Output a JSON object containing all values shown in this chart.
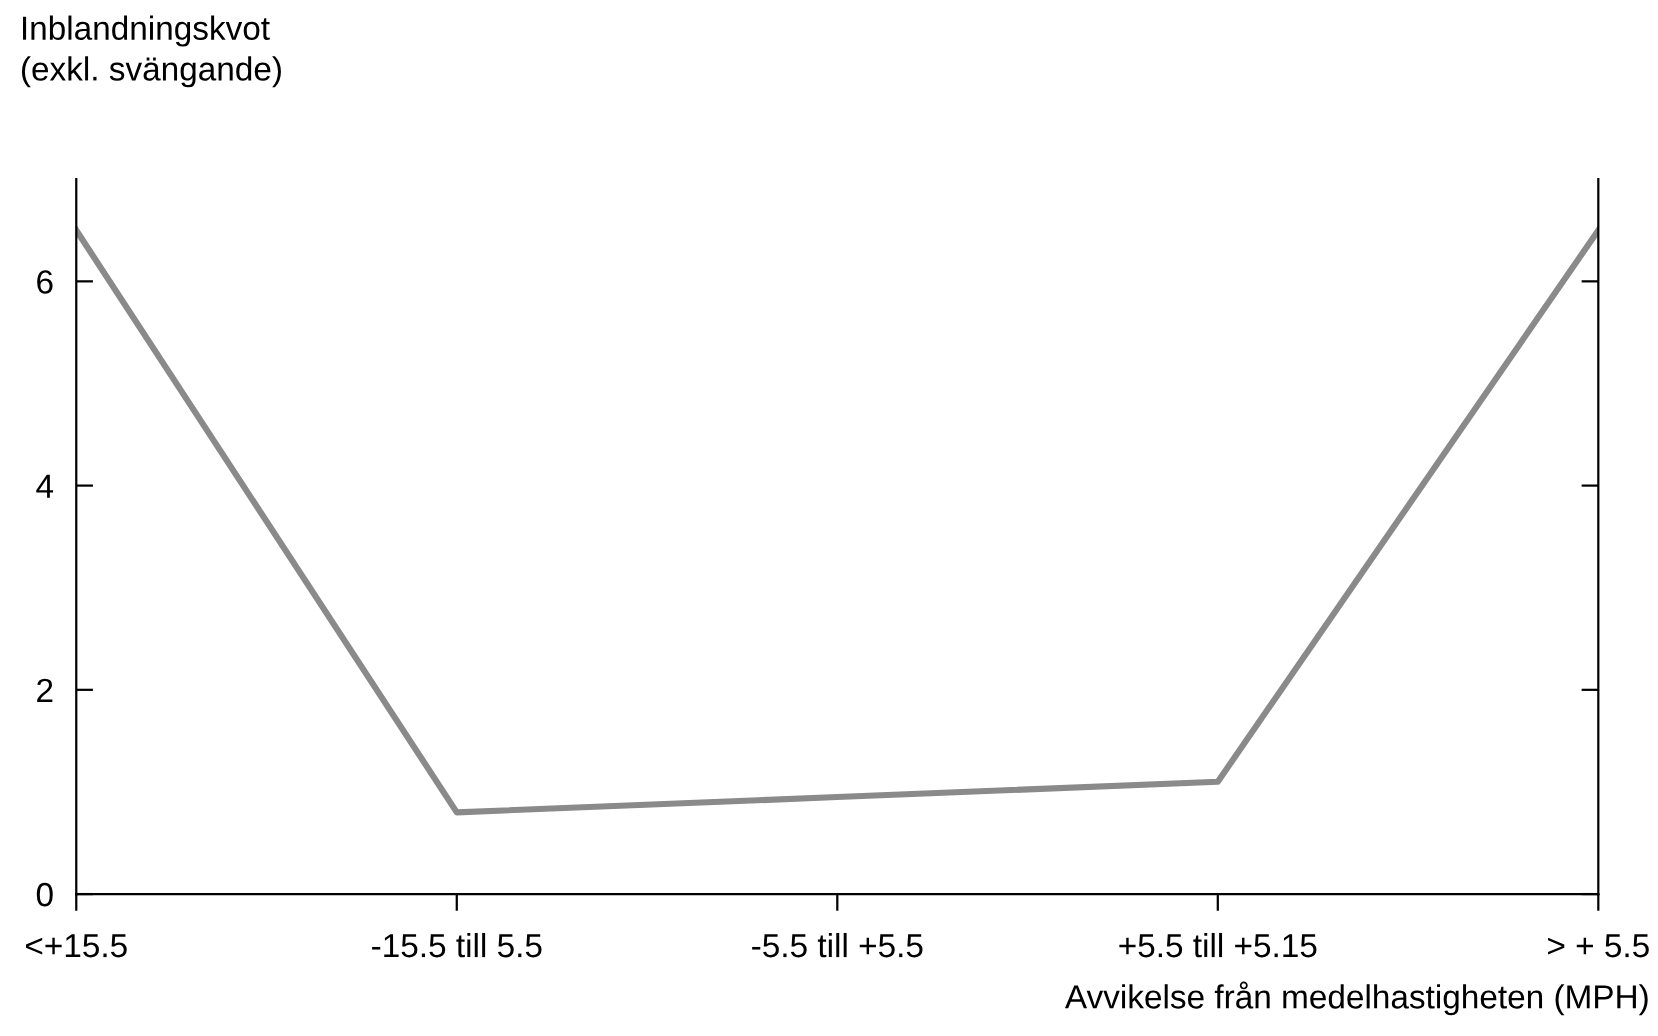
{
  "chart_data": {
    "type": "line",
    "xlabel": "Avvikelse från medelhastigheten (MPH)",
    "ylabel": "Inblandningskvot\n(exkl. svängande)",
    "categories": [
      "<+15.5",
      "-15.5 till 5.5",
      "-5.5 till +5.5",
      "+5.5 till +5.15",
      "> + 5.5"
    ],
    "series": [
      {
        "color": "#8a8a8a",
        "values": [
          6.5,
          0.8,
          0.95,
          1.1,
          6.5
        ]
      }
    ],
    "ylim": [
      0,
      7
    ],
    "yticks": [
      0,
      2,
      4,
      6
    ],
    "grid": false,
    "legend": false,
    "marker": "none",
    "line_style": "solid"
  }
}
